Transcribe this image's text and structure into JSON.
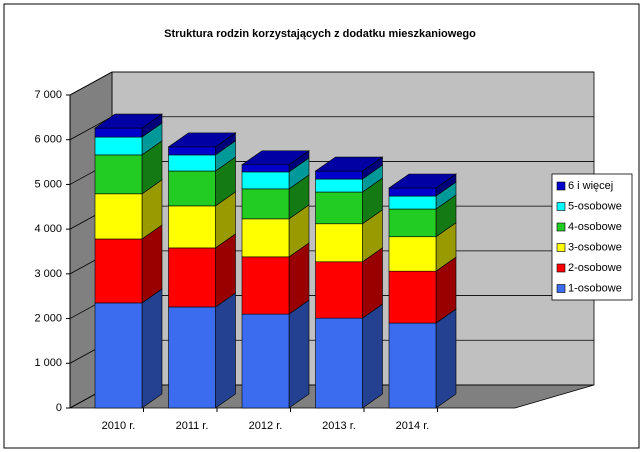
{
  "chart_data": {
    "type": "bar3d_stacked",
    "title": "Struktura rodzin korzystających  z dodatku mieszkaniowego",
    "categories": [
      "2010 r.",
      "2011 r.",
      "2012 r.",
      "2013 r.",
      "2014 r."
    ],
    "series": [
      {
        "name": "1-osobowe",
        "color": "#3b6cf0",
        "values": [
          2350,
          2260,
          2100,
          2010,
          1900
        ]
      },
      {
        "name": "2-osobowe",
        "color": "#ff0000",
        "values": [
          1430,
          1320,
          1280,
          1260,
          1160
        ]
      },
      {
        "name": "3-osobowe",
        "color": "#ffff00",
        "values": [
          1010,
          940,
          850,
          850,
          770
        ]
      },
      {
        "name": "4-osobowe",
        "color": "#22cc22",
        "values": [
          870,
          780,
          670,
          710,
          620
        ]
      },
      {
        "name": "5-osobowe",
        "color": "#00ffff",
        "values": [
          400,
          360,
          380,
          290,
          290
        ]
      },
      {
        "name": "6 i więcej",
        "color": "#0000cc",
        "values": [
          200,
          180,
          160,
          180,
          180
        ]
      }
    ],
    "ylim": [
      0,
      7000
    ],
    "yticks": [
      0,
      {
        "value": 1000,
        "label": "1 000"
      },
      {
        "value": 2000,
        "label": "2 000"
      },
      {
        "value": 3000,
        "label": "3 000"
      },
      {
        "value": 4000,
        "label": "4 000"
      },
      {
        "value": 5000,
        "label": "5 000"
      },
      {
        "value": 6000,
        "label": "6 000"
      },
      {
        "value": 7000,
        "label": "7 000"
      }
    ],
    "grid": true,
    "legend": "right"
  }
}
